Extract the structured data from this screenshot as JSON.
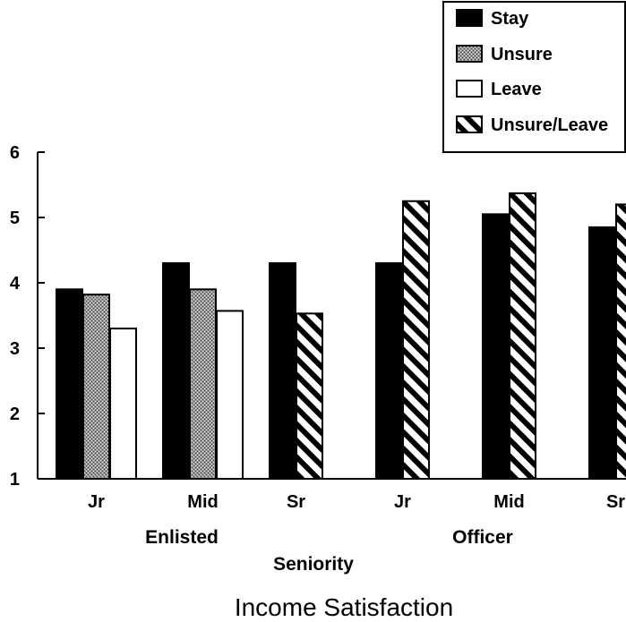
{
  "chart_data": {
    "type": "bar",
    "title": "Income Satisfaction",
    "xlabel": "Seniority",
    "ylabel": "",
    "ylim": [
      1,
      6
    ],
    "yticks": [
      1,
      2,
      3,
      4,
      5,
      6
    ],
    "grid": false,
    "legend_position": "top-right",
    "groups": [
      {
        "label": "Enlisted",
        "categories": [
          "Jr",
          "Mid",
          "Sr"
        ]
      },
      {
        "label": "Officer",
        "categories": [
          "Jr",
          "Mid",
          "Sr"
        ]
      }
    ],
    "categories": [
      "Jr",
      "Mid",
      "Sr",
      "Jr",
      "Mid",
      "Sr"
    ],
    "series": [
      {
        "name": "Stay",
        "values": [
          3.9,
          4.3,
          4.3,
          4.3,
          5.05,
          4.85
        ]
      },
      {
        "name": "Unsure",
        "values": [
          3.82,
          3.9,
          null,
          null,
          null,
          null
        ]
      },
      {
        "name": "Leave",
        "values": [
          3.3,
          3.57,
          null,
          null,
          null,
          null
        ]
      },
      {
        "name": "Unsure/Leave",
        "values": [
          null,
          null,
          3.53,
          5.25,
          5.37,
          5.2
        ]
      }
    ],
    "series_styles": {
      "Stay": "solid-black",
      "Unsure": "stippled-gray",
      "Leave": "white",
      "Unsure/Leave": "diagonal-hatch"
    }
  }
}
